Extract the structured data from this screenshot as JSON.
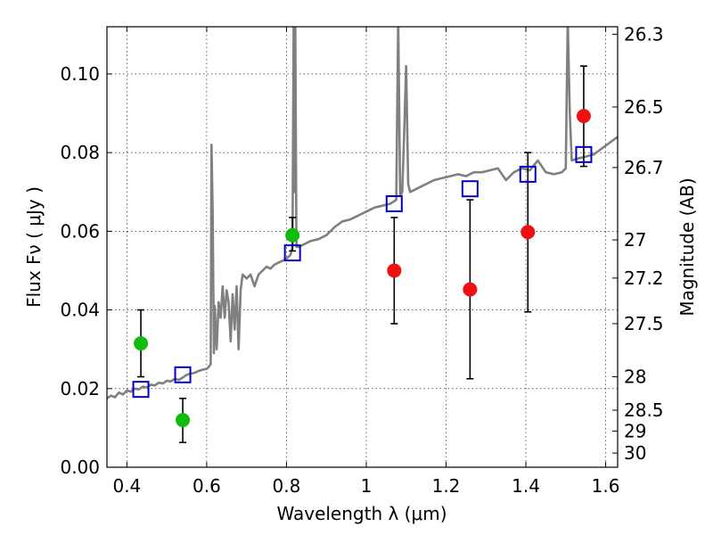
{
  "chart_data": {
    "type": "scatter",
    "title": "",
    "xlabel": "Wavelength  λ (μm)",
    "ylabel": "Flux  Fν  ( μJy )",
    "y2label": "Magnitude (AB)",
    "xlim": [
      0.35,
      1.63
    ],
    "ylim": [
      0.0,
      0.112
    ],
    "grid": true,
    "x_ticks": [
      0.4,
      0.6,
      0.8,
      1.0,
      1.2,
      1.4,
      1.6
    ],
    "x_tick_labels": [
      "0.4",
      "0.6",
      "0.8",
      "1",
      "1.2",
      "1.4",
      "1.6"
    ],
    "y_ticks": [
      0.0,
      0.02,
      0.04,
      0.06,
      0.08,
      0.1
    ],
    "y_tick_labels": [
      "0.00",
      "0.02",
      "0.04",
      "0.06",
      "0.08",
      "0.10"
    ],
    "y2_ticks": [
      {
        "label": "26.3",
        "flux": 0.1101
      },
      {
        "label": "26.5",
        "flux": 0.0916
      },
      {
        "label": "26.7",
        "flux": 0.0762
      },
      {
        "label": "27",
        "flux": 0.0578
      },
      {
        "label": "27.2",
        "flux": 0.0481
      },
      {
        "label": "27.5",
        "flux": 0.0365
      },
      {
        "label": "28",
        "flux": 0.023
      },
      {
        "label": "28.5",
        "flux": 0.0145
      },
      {
        "label": "29",
        "flux": 0.0092
      },
      {
        "label": "30",
        "flux": 0.0036
      }
    ],
    "series": [
      {
        "kind": "spectrum",
        "color": "#808080",
        "points": [
          [
            0.35,
            0.0175
          ],
          [
            0.36,
            0.0182
          ],
          [
            0.37,
            0.0178
          ],
          [
            0.38,
            0.019
          ],
          [
            0.39,
            0.0185
          ],
          [
            0.4,
            0.0195
          ],
          [
            0.41,
            0.0192
          ],
          [
            0.42,
            0.02
          ],
          [
            0.43,
            0.0198
          ],
          [
            0.44,
            0.0205
          ],
          [
            0.45,
            0.0203
          ],
          [
            0.46,
            0.021
          ],
          [
            0.47,
            0.0208
          ],
          [
            0.48,
            0.0215
          ],
          [
            0.49,
            0.0213
          ],
          [
            0.5,
            0.022
          ],
          [
            0.51,
            0.0218
          ],
          [
            0.52,
            0.0225
          ],
          [
            0.53,
            0.0222
          ],
          [
            0.54,
            0.0228
          ],
          [
            0.55,
            0.0235
          ],
          [
            0.56,
            0.0238
          ],
          [
            0.57,
            0.024
          ],
          [
            0.58,
            0.0245
          ],
          [
            0.59,
            0.0248
          ],
          [
            0.6,
            0.025
          ],
          [
            0.605,
            0.0255
          ],
          [
            0.61,
            0.0262
          ],
          [
            0.612,
            0.082
          ],
          [
            0.615,
            0.065
          ],
          [
            0.618,
            0.029
          ],
          [
            0.62,
            0.041
          ],
          [
            0.625,
            0.03
          ],
          [
            0.63,
            0.042
          ],
          [
            0.635,
            0.038
          ],
          [
            0.64,
            0.046
          ],
          [
            0.645,
            0.038
          ],
          [
            0.65,
            0.045
          ],
          [
            0.655,
            0.042
          ],
          [
            0.66,
            0.032
          ],
          [
            0.665,
            0.044
          ],
          [
            0.67,
            0.035
          ],
          [
            0.675,
            0.046
          ],
          [
            0.68,
            0.03
          ],
          [
            0.685,
            0.045
          ],
          [
            0.69,
            0.049
          ],
          [
            0.7,
            0.048
          ],
          [
            0.71,
            0.049
          ],
          [
            0.72,
            0.046
          ],
          [
            0.73,
            0.049
          ],
          [
            0.74,
            0.05
          ],
          [
            0.75,
            0.051
          ],
          [
            0.76,
            0.0505
          ],
          [
            0.77,
            0.0515
          ],
          [
            0.78,
            0.052
          ],
          [
            0.79,
            0.0525
          ],
          [
            0.8,
            0.053
          ],
          [
            0.81,
            0.054
          ],
          [
            0.815,
            0.056
          ],
          [
            0.818,
            0.114
          ],
          [
            0.82,
            0.07
          ],
          [
            0.822,
            0.114
          ],
          [
            0.825,
            0.056
          ],
          [
            0.83,
            0.056
          ],
          [
            0.84,
            0.0565
          ],
          [
            0.86,
            0.0575
          ],
          [
            0.88,
            0.058
          ],
          [
            0.9,
            0.059
          ],
          [
            0.92,
            0.061
          ],
          [
            0.94,
            0.0625
          ],
          [
            0.96,
            0.063
          ],
          [
            0.98,
            0.064
          ],
          [
            1.0,
            0.065
          ],
          [
            1.02,
            0.066
          ],
          [
            1.04,
            0.0665
          ],
          [
            1.06,
            0.067
          ],
          [
            1.075,
            0.068
          ],
          [
            1.08,
            0.114
          ],
          [
            1.085,
            0.069
          ],
          [
            1.09,
            0.07
          ],
          [
            1.095,
            0.085
          ],
          [
            1.1,
            0.102
          ],
          [
            1.105,
            0.072
          ],
          [
            1.11,
            0.07
          ],
          [
            1.13,
            0.071
          ],
          [
            1.15,
            0.072
          ],
          [
            1.17,
            0.073
          ],
          [
            1.19,
            0.0735
          ],
          [
            1.21,
            0.074
          ],
          [
            1.23,
            0.0745
          ],
          [
            1.25,
            0.074
          ],
          [
            1.27,
            0.075
          ],
          [
            1.29,
            0.075
          ],
          [
            1.31,
            0.0755
          ],
          [
            1.33,
            0.076
          ],
          [
            1.35,
            0.073
          ],
          [
            1.37,
            0.075
          ],
          [
            1.39,
            0.076
          ],
          [
            1.41,
            0.0755
          ],
          [
            1.43,
            0.078
          ],
          [
            1.45,
            0.075
          ],
          [
            1.47,
            0.0745
          ],
          [
            1.49,
            0.075
          ],
          [
            1.5,
            0.076
          ],
          [
            1.505,
            0.114
          ],
          [
            1.51,
            0.09
          ],
          [
            1.515,
            0.078
          ],
          [
            1.53,
            0.0785
          ],
          [
            1.55,
            0.079
          ],
          [
            1.57,
            0.0795
          ],
          [
            1.59,
            0.081
          ],
          [
            1.61,
            0.0825
          ],
          [
            1.63,
            0.084
          ]
        ]
      },
      {
        "kind": "model",
        "marker": "open-square",
        "color": "#0000cc",
        "points": [
          {
            "x": 0.435,
            "y": 0.0198
          },
          {
            "x": 0.54,
            "y": 0.0235
          },
          {
            "x": 0.815,
            "y": 0.0545
          },
          {
            "x": 1.07,
            "y": 0.067
          },
          {
            "x": 1.26,
            "y": 0.0708
          },
          {
            "x": 1.405,
            "y": 0.0745
          },
          {
            "x": 1.545,
            "y": 0.0795
          }
        ]
      },
      {
        "kind": "measured",
        "marker": "filled-circle",
        "color": "#11bb11",
        "points": [
          {
            "x": 0.435,
            "y": 0.0315,
            "lo": 0.023,
            "hi": 0.04
          },
          {
            "x": 0.54,
            "y": 0.012,
            "lo": 0.0063,
            "hi": 0.0175
          },
          {
            "x": 0.815,
            "y": 0.059,
            "lo": 0.055,
            "hi": 0.0635
          }
        ]
      },
      {
        "kind": "measured",
        "marker": "filled-circle",
        "color": "#ee1111",
        "points": [
          {
            "x": 1.07,
            "y": 0.05,
            "lo": 0.0365,
            "hi": 0.0635
          },
          {
            "x": 1.26,
            "y": 0.0452,
            "lo": 0.0225,
            "hi": 0.068
          },
          {
            "x": 1.405,
            "y": 0.0598,
            "lo": 0.0395,
            "hi": 0.08
          },
          {
            "x": 1.545,
            "y": 0.0893,
            "lo": 0.0765,
            "hi": 0.102
          }
        ]
      }
    ]
  }
}
